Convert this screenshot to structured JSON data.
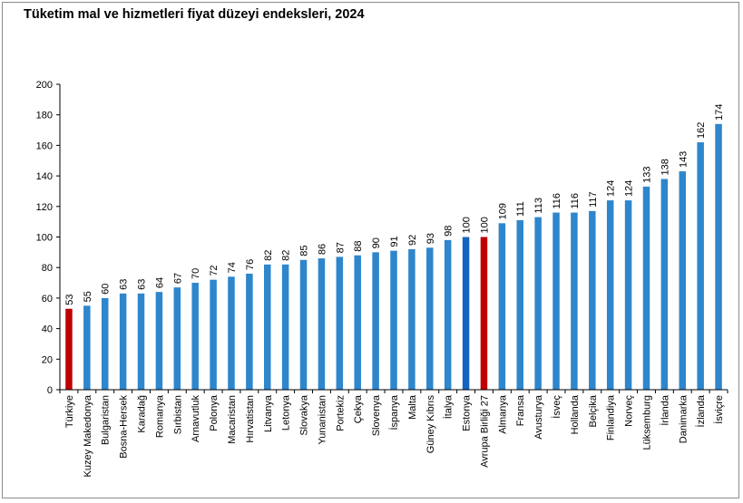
{
  "chart_data": {
    "type": "bar",
    "title": "Tüketim mal ve hizmetleri fiyat düzeyi endeksleri, 2024",
    "xlabel": "",
    "ylabel": "",
    "ylim": [
      0,
      200
    ],
    "yticks": [
      0,
      20,
      40,
      60,
      80,
      100,
      120,
      140,
      160,
      180,
      200
    ],
    "grid": false,
    "legend": "none",
    "colors": {
      "default": "#2e86cc",
      "turkey": "#c00000",
      "eu": "#c00000",
      "estonia": "#1565c0"
    },
    "categories": [
      "Türkiye",
      "Kuzey Makedonya",
      "Bulgaristan",
      "Bosna-Hersek",
      "Karadağ",
      "Romanya",
      "Sırbistan",
      "Arnavutluk",
      "Polonya",
      "Macaristan",
      "Hırvatistan",
      "Litvanya",
      "Letonya",
      "Slovakya",
      "Yunanistan",
      "Portekiz",
      "Çekya",
      "Slovenya",
      "İspanya",
      "Malta",
      "Güney Kıbrıs",
      "İtalya",
      "Estonya",
      "Avrupa Birliği 27",
      "Almanya",
      "Fransa",
      "Avusturya",
      "İsveç",
      "Hollanda",
      "Belçika",
      "Finlandiya",
      "Norveç",
      "Lüksemburg",
      "İrlanda",
      "Danimarka",
      "İzlanda",
      "İsviçre"
    ],
    "values": [
      53,
      55,
      60,
      63,
      63,
      64,
      67,
      70,
      72,
      74,
      76,
      82,
      82,
      85,
      86,
      87,
      88,
      90,
      91,
      92,
      93,
      98,
      100,
      100,
      109,
      111,
      113,
      116,
      116,
      117,
      124,
      124,
      133,
      138,
      143,
      162,
      174
    ],
    "bar_colors": [
      "turkey",
      "default",
      "default",
      "default",
      "default",
      "default",
      "default",
      "default",
      "default",
      "default",
      "default",
      "default",
      "default",
      "default",
      "default",
      "default",
      "default",
      "default",
      "default",
      "default",
      "default",
      "default",
      "estonia",
      "eu",
      "default",
      "default",
      "default",
      "default",
      "default",
      "default",
      "default",
      "default",
      "default",
      "default",
      "default",
      "default",
      "default"
    ]
  }
}
